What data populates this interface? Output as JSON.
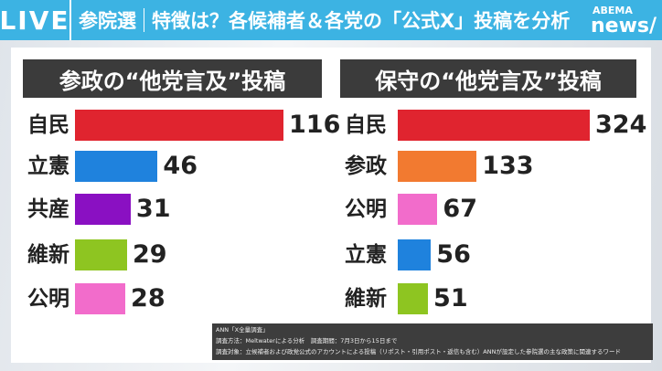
{
  "header": {
    "live": "LIVE",
    "topic": "参院選",
    "headline": "特徴は？各候補者＆各党の「公式X」投稿を分析",
    "logo_top": "ABEMA",
    "logo_bottom": "news/"
  },
  "chart_data": [
    {
      "type": "bar",
      "orientation": "horizontal",
      "title": "参政の“他党言及”投稿",
      "categories": [
        "自民",
        "立憲",
        "共産",
        "維新",
        "公明"
      ],
      "values": [
        116,
        46,
        31,
        29,
        28
      ],
      "colors": [
        "#e0242f",
        "#1f82dd",
        "#8a10c2",
        "#8ec521",
        "#f26ccb"
      ]
    },
    {
      "type": "bar",
      "orientation": "horizontal",
      "title": "保守の“他党言及”投稿",
      "categories": [
        "自民",
        "参政",
        "公明",
        "立憲",
        "維新"
      ],
      "values": [
        324,
        133,
        67,
        56,
        51
      ],
      "colors": [
        "#e0242f",
        "#f27a30",
        "#f26ccb",
        "#1f82dd",
        "#8ec521"
      ]
    }
  ],
  "note": [
    "ANN「X全量調査」",
    "調査方法：Meltwaterによる分析　調査期間：7月3日から15日まで",
    "調査対象：立候補者および政党公式のアカウントによる投稿（リポスト・引用ポスト・返信も含む）ANNが設定した参院選の主な政策に関連するワード"
  ]
}
